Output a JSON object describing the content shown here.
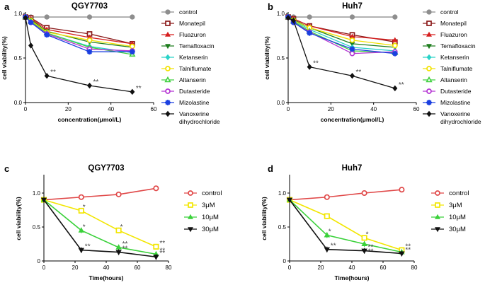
{
  "chart_data": [
    {
      "panel": "a",
      "type": "line",
      "title": "QGY7703",
      "xlabel": "concentration(μmol/L)",
      "ylabel": "cell viability(%)",
      "xlim": [
        0,
        60
      ],
      "ylim": [
        0,
        1.0
      ],
      "xticks": [
        "0",
        "20",
        "40",
        "60"
      ],
      "yticks": [
        "0.0",
        "0.5",
        "1.0"
      ],
      "x": [
        0,
        2.5,
        10,
        30,
        50
      ],
      "series": [
        {
          "name": "control",
          "color": "#8e8e8e",
          "marker": "circle",
          "values": [
            0.96,
            0.96,
            0.96,
            0.96,
            0.96
          ]
        },
        {
          "name": "Monatepil",
          "color": "#8b1a1a",
          "marker": "square",
          "values": [
            0.96,
            0.95,
            0.84,
            0.77,
            0.66
          ]
        },
        {
          "name": "Fluazuron",
          "color": "#d61f1f",
          "marker": "triangle-up",
          "values": [
            0.96,
            0.94,
            0.82,
            0.73,
            0.66
          ]
        },
        {
          "name": "Temafloxacin",
          "color": "#1e7d1e",
          "marker": "triangle-down",
          "values": [
            0.96,
            0.93,
            0.8,
            0.68,
            0.62
          ]
        },
        {
          "name": "Ketanserin",
          "color": "#2ad3c8",
          "marker": "diamond",
          "values": [
            0.96,
            0.92,
            0.78,
            0.63,
            0.56
          ]
        },
        {
          "name": "Talniflumate",
          "color": "#f2e200",
          "marker": "circle-open",
          "values": [
            0.96,
            0.92,
            0.79,
            0.7,
            0.63
          ]
        },
        {
          "name": "Altanserin",
          "color": "#40d040",
          "marker": "triangle-open",
          "values": [
            0.96,
            0.91,
            0.78,
            0.62,
            0.54
          ]
        },
        {
          "name": "Dutasteride",
          "color": "#b534d3",
          "marker": "circle-open",
          "values": [
            0.96,
            0.9,
            0.77,
            0.6,
            0.58
          ]
        },
        {
          "name": "Mizolastine",
          "color": "#1a3fe0",
          "marker": "star",
          "values": [
            0.96,
            0.9,
            0.76,
            0.57,
            0.57
          ]
        },
        {
          "name": "Vanoxerine dihydrochloride",
          "color": "#111111",
          "marker": "diamond",
          "values": [
            0.95,
            0.64,
            0.3,
            0.19,
            0.12
          ]
        }
      ],
      "annotations": [
        {
          "text": "**",
          "x": 10,
          "y": 0.3
        },
        {
          "text": "**",
          "x": 30,
          "y": 0.19
        },
        {
          "text": "**",
          "x": 50,
          "y": 0.12
        }
      ]
    },
    {
      "panel": "b",
      "type": "line",
      "title": "Huh7",
      "xlabel": "concentration(μmol/L)",
      "ylabel": "cell viability(%)",
      "xlim": [
        0,
        60
      ],
      "ylim": [
        0,
        1.0
      ],
      "xticks": [
        "0",
        "20",
        "40",
        "60"
      ],
      "yticks": [
        "0.0",
        "0.5",
        "1.0"
      ],
      "x": [
        0,
        2.5,
        10,
        30,
        50
      ],
      "series": [
        {
          "name": "control",
          "color": "#8e8e8e",
          "marker": "circle",
          "values": [
            0.96,
            0.96,
            0.96,
            0.96,
            0.96
          ]
        },
        {
          "name": "Monatepil",
          "color": "#8b1a1a",
          "marker": "square",
          "values": [
            0.96,
            0.94,
            0.86,
            0.76,
            0.68
          ]
        },
        {
          "name": "Fluazuron",
          "color": "#d61f1f",
          "marker": "triangle-up",
          "values": [
            0.96,
            0.94,
            0.86,
            0.74,
            0.7
          ]
        },
        {
          "name": "Temafloxacin",
          "color": "#1e7d1e",
          "marker": "triangle-down",
          "values": [
            0.96,
            0.93,
            0.84,
            0.66,
            0.62
          ]
        },
        {
          "name": "Ketanserin",
          "color": "#2ad3c8",
          "marker": "diamond",
          "values": [
            0.96,
            0.92,
            0.82,
            0.62,
            0.58
          ]
        },
        {
          "name": "Talniflumate",
          "color": "#f2e200",
          "marker": "circle-open",
          "values": [
            0.96,
            0.92,
            0.84,
            0.7,
            0.64
          ]
        },
        {
          "name": "Altanserin",
          "color": "#40d040",
          "marker": "triangle-open",
          "values": [
            0.96,
            0.91,
            0.8,
            0.58,
            0.56
          ]
        },
        {
          "name": "Dutasteride",
          "color": "#b534d3",
          "marker": "circle-open",
          "values": [
            0.96,
            0.9,
            0.79,
            0.55,
            0.57
          ]
        },
        {
          "name": "Mizolastine",
          "color": "#1a3fe0",
          "marker": "star",
          "values": [
            0.96,
            0.9,
            0.78,
            0.6,
            0.55
          ]
        },
        {
          "name": "Vanoxerine dihydrochloride",
          "color": "#111111",
          "marker": "diamond",
          "values": [
            0.95,
            0.92,
            0.4,
            0.3,
            0.16
          ]
        }
      ],
      "annotations": [
        {
          "text": "**",
          "x": 10,
          "y": 0.4
        },
        {
          "text": "**",
          "x": 30,
          "y": 0.3
        },
        {
          "text": "**",
          "x": 50,
          "y": 0.16
        }
      ]
    },
    {
      "panel": "c",
      "type": "line",
      "title": "QGY7703",
      "xlabel": "Time(hours)",
      "ylabel": "cell viability(%)",
      "xlim": [
        0,
        80
      ],
      "ylim": [
        0,
        1.25
      ],
      "xticks": [
        "0",
        "20",
        "40",
        "60",
        "80"
      ],
      "yticks": [
        "0",
        "0.5",
        "1.0"
      ],
      "x": [
        0,
        24,
        48,
        72
      ],
      "series": [
        {
          "name": "control",
          "color": "#e04848",
          "marker": "circle-open",
          "values": [
            0.9,
            0.94,
            0.98,
            1.07
          ]
        },
        {
          "name": "3μM",
          "color": "#f2e600",
          "marker": "square-open",
          "values": [
            0.9,
            0.74,
            0.45,
            0.21
          ]
        },
        {
          "name": "10μM",
          "color": "#3ad13a",
          "marker": "triangle-up",
          "values": [
            0.9,
            0.45,
            0.2,
            0.1
          ]
        },
        {
          "name": "30μM",
          "color": "#111111",
          "marker": "triangle-down",
          "values": [
            0.9,
            0.16,
            0.13,
            0.06
          ]
        }
      ],
      "annotations": [
        {
          "text": "*",
          "x": 24,
          "y": 0.74
        },
        {
          "text": "*",
          "x": 24,
          "y": 0.45
        },
        {
          "text": "**",
          "x": 24,
          "y": 0.16
        },
        {
          "text": "*",
          "x": 48,
          "y": 0.45
        },
        {
          "text": "**",
          "x": 48,
          "y": 0.2
        },
        {
          "text": "**",
          "x": 48,
          "y": 0.13
        },
        {
          "text": "**",
          "x": 72,
          "y": 0.21
        },
        {
          "text": "**",
          "x": 72,
          "y": 0.1
        },
        {
          "text": "**",
          "x": 72,
          "y": 0.06
        }
      ]
    },
    {
      "panel": "d",
      "type": "line",
      "title": "Huh7",
      "xlabel": "Time(hours)",
      "ylabel": "cell viability(%)",
      "xlim": [
        0,
        80
      ],
      "ylim": [
        0,
        1.25
      ],
      "xticks": [
        "0",
        "20",
        "40",
        "60",
        "80"
      ],
      "yticks": [
        "0",
        "0.5",
        "1.0"
      ],
      "x": [
        0,
        24,
        48,
        72
      ],
      "series": [
        {
          "name": "control",
          "color": "#e04848",
          "marker": "circle-open",
          "values": [
            0.9,
            0.94,
            1.0,
            1.05
          ]
        },
        {
          "name": "3μM",
          "color": "#f2e600",
          "marker": "square-open",
          "values": [
            0.9,
            0.66,
            0.34,
            0.16
          ]
        },
        {
          "name": "10μM",
          "color": "#3ad13a",
          "marker": "triangle-up",
          "values": [
            0.9,
            0.38,
            0.25,
            0.13
          ]
        },
        {
          "name": "30μM",
          "color": "#111111",
          "marker": "triangle-down",
          "values": [
            0.9,
            0.17,
            0.15,
            0.11
          ]
        }
      ],
      "annotations": [
        {
          "text": "*",
          "x": 24,
          "y": 0.38
        },
        {
          "text": "**",
          "x": 24,
          "y": 0.17
        },
        {
          "text": "*",
          "x": 48,
          "y": 0.34
        },
        {
          "text": "**",
          "x": 48,
          "y": 0.15
        },
        {
          "text": "**",
          "x": 48,
          "y": 0.09
        },
        {
          "text": "**",
          "x": 72,
          "y": 0.16
        },
        {
          "text": "**",
          "x": 72,
          "y": 0.11
        }
      ]
    }
  ]
}
